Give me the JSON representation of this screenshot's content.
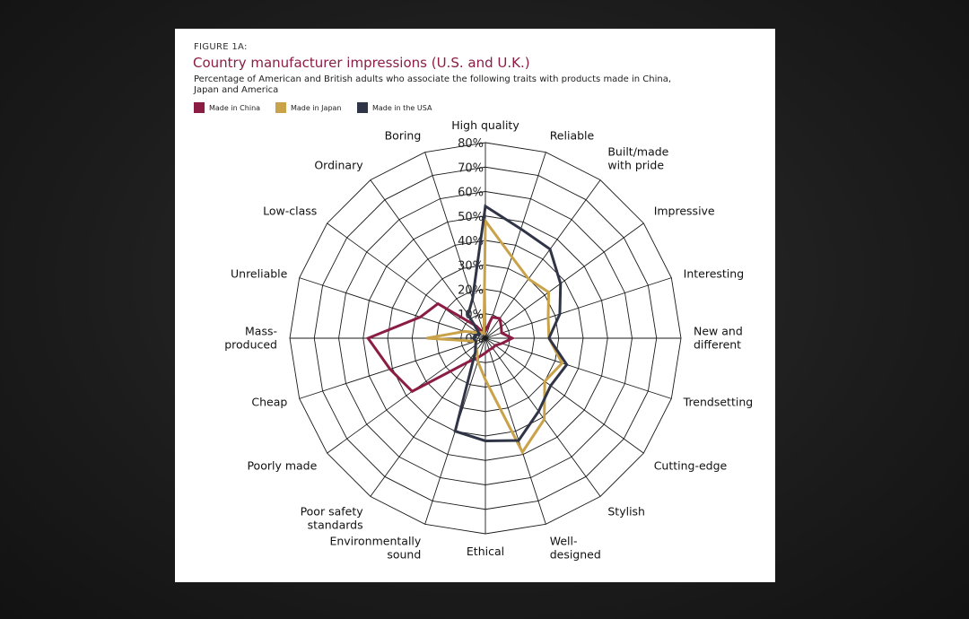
{
  "figure_label": "FIGURE 1A:",
  "chart_data": {
    "type": "radar",
    "title": "Country manufacturer impressions (U.S. and U.K.)",
    "subtitle": "Percentage of American and British adults who associate the following traits with products made in China, Japan and America",
    "categories": [
      "High quality",
      "Reliable",
      "Built/made with pride",
      "Impressive",
      "Interesting",
      "New and different",
      "Trendsetting",
      "Cutting-edge",
      "Stylish",
      "Well-designed",
      "Ethical",
      "Environmentally sound",
      "Poor safety standards",
      "Poorly made",
      "Cheap",
      "Mass-produced",
      "Unreliable",
      "Low-class",
      "Ordinary",
      "Boring"
    ],
    "ticks": [
      "0%",
      "10%",
      "20%",
      "30%",
      "40%",
      "50%",
      "60%",
      "70%",
      "80%"
    ],
    "rlim": [
      0,
      80
    ],
    "grid": true,
    "legend_position": "top-left",
    "series": [
      {
        "name": "Made in China",
        "color": "#8b1d45",
        "values": [
          3,
          9,
          10,
          8,
          7,
          11,
          7,
          5,
          5,
          5,
          6,
          8,
          12,
          37,
          41,
          48,
          28,
          24,
          6,
          2
        ]
      },
      {
        "name": "Made in Japan",
        "color": "#c9a24a",
        "values": [
          48,
          35,
          30,
          32,
          27,
          26,
          33,
          30,
          41,
          49,
          17,
          10,
          6,
          5,
          4,
          24,
          9,
          4,
          3,
          2
        ]
      },
      {
        "name": "Made in the USA",
        "color": "#2f3447",
        "values": [
          54,
          47,
          45,
          38,
          32,
          26,
          35,
          33,
          37,
          44,
          42,
          40,
          7,
          5,
          4,
          5,
          4,
          3,
          12,
          17
        ]
      }
    ]
  }
}
